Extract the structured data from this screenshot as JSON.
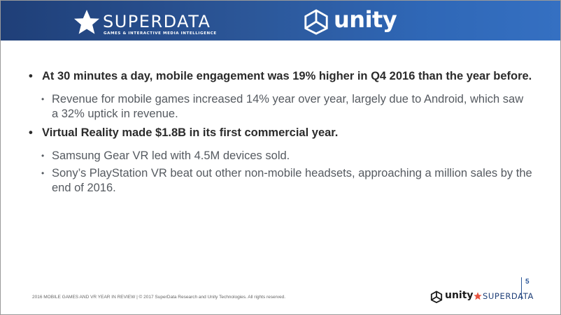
{
  "header": {
    "superdata_name": "SUPERDATA",
    "superdata_tagline": "GAMES & INTERACTIVE MEDIA INTELLIGENCE",
    "unity_name": "unity",
    "background_colors": [
      "#1f3f78",
      "#3570c2"
    ]
  },
  "bullets": [
    {
      "text": "At 30 minutes a day, mobile engagement was 19% higher in Q4 2016 than the year before.",
      "sub": [
        "Revenue for mobile games increased 14% year over year, largely due to Android, which saw a 32% uptick in revenue."
      ]
    },
    {
      "text": "Virtual Reality made $1.8B in its first commercial year.",
      "sub": [
        "Samsung Gear VR led with 4.5M devices sold.",
        "Sony’s PlayStation VR beat out other non-mobile headsets, approaching a million sales by the end of 2016."
      ]
    }
  ],
  "bullet_glyph": "•",
  "footer": {
    "text": "2016 MOBILE GAMES AND VR YEAR IN REVIEW | © 2017 SuperData Research and Unity Technologies. All rights reserved.",
    "page_number": "5",
    "unity_name": "unity",
    "superdata_name": "SUPERDATA",
    "accent_color": "#2c5799",
    "star_color": "#e8533f"
  },
  "icons": {
    "header_star": "star-icon",
    "header_cube": "unity-cube-icon",
    "footer_cube": "unity-cube-icon",
    "footer_star": "star-icon"
  }
}
